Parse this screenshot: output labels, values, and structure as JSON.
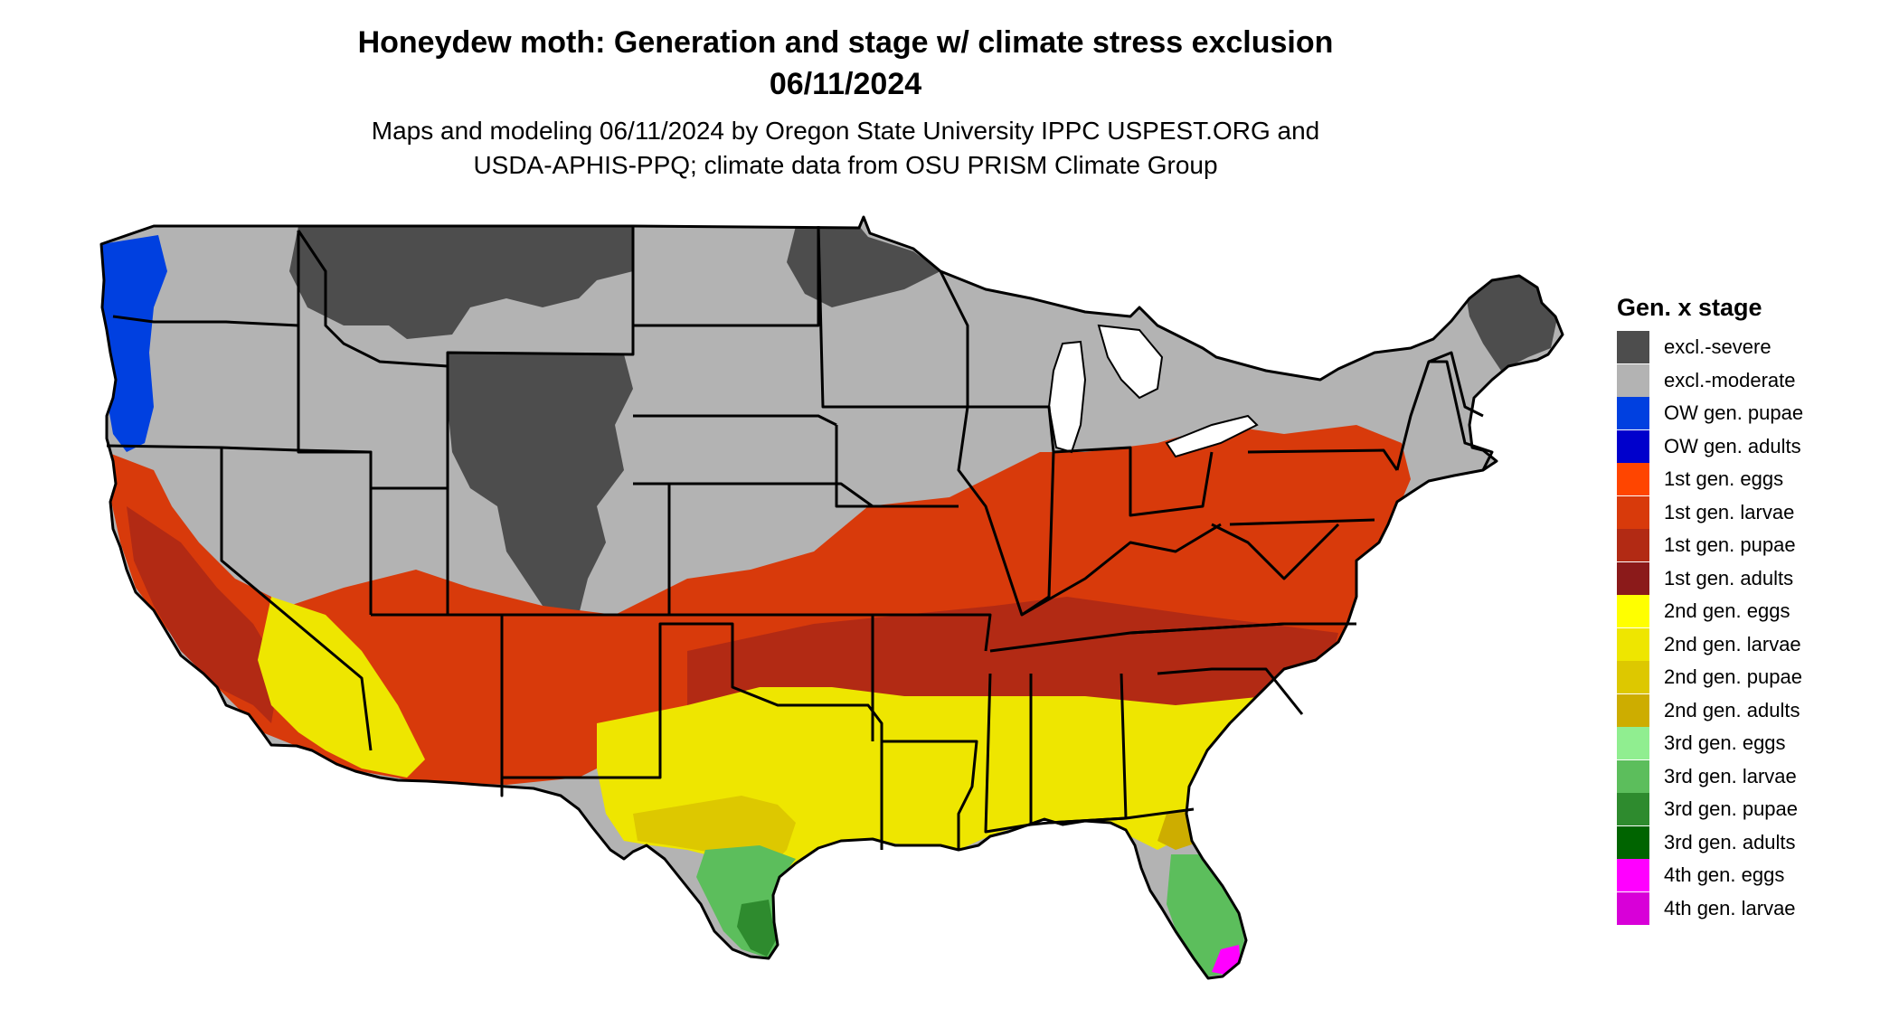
{
  "title": {
    "line1": "Honeydew moth: Generation and stage w/ climate stress exclusion",
    "line2": "06/11/2024"
  },
  "subtitle": {
    "line1": "Maps and modeling 06/11/2024 by Oregon State University IPPC USPEST.ORG and",
    "line2": "USDA-APHIS-PPQ; climate data from OSU PRISM Climate Group"
  },
  "legend": {
    "title": "Gen. x stage",
    "items": [
      {
        "label": "excl.-severe",
        "color": "#4D4D4D"
      },
      {
        "label": "excl.-moderate",
        "color": "#B3B3B3"
      },
      {
        "label": "OW gen. pupae",
        "color": "#0040E0"
      },
      {
        "label": "OW gen. adults",
        "color": "#0000CC"
      },
      {
        "label": "1st gen. eggs",
        "color": "#FF4500"
      },
      {
        "label": "1st gen. larvae",
        "color": "#D83A0B"
      },
      {
        "label": "1st gen. pupae",
        "color": "#B22A14"
      },
      {
        "label": "1st gen. adults",
        "color": "#8B1A1A"
      },
      {
        "label": "2nd gen. eggs",
        "color": "#FFFF00"
      },
      {
        "label": "2nd gen. larvae",
        "color": "#EEE600"
      },
      {
        "label": "2nd gen. pupae",
        "color": "#DDC800"
      },
      {
        "label": "2nd gen. adults",
        "color": "#CDAD00"
      },
      {
        "label": "3rd gen. eggs",
        "color": "#90EE90"
      },
      {
        "label": "3rd gen. larvae",
        "color": "#5CBE5C"
      },
      {
        "label": "3rd gen. pupae",
        "color": "#2E8B2E"
      },
      {
        "label": "3rd gen. adults",
        "color": "#006400"
      },
      {
        "label": "4th gen. eggs",
        "color": "#FF00FF"
      },
      {
        "label": "4th gen. larvae",
        "color": "#D800D8"
      }
    ]
  }
}
